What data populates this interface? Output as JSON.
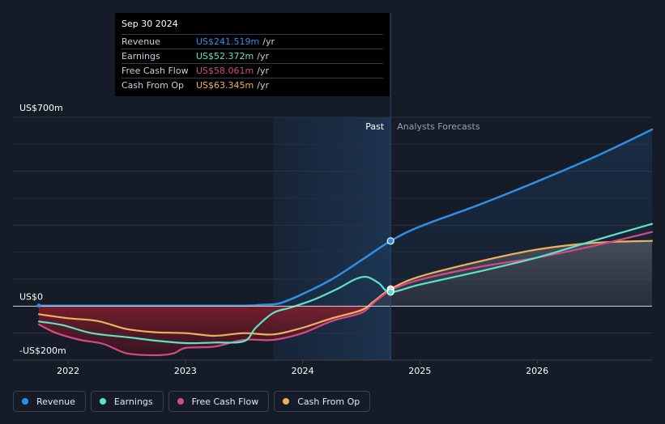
{
  "colors": {
    "background": "#151b27",
    "revenue": "#2f8fe6",
    "earnings": "#5ee3c9",
    "free_cash_flow": "#d44a86",
    "cash_from_op": "#f0b060",
    "grid": "#2b3342",
    "text": "#ffffff",
    "muted": "#9aa1ad"
  },
  "tooltip": {
    "date": "Sep 30 2024",
    "rows": [
      {
        "label": "Revenue",
        "value": "US$241.519m",
        "unit": "/yr",
        "color": "#2f8fe6"
      },
      {
        "label": "Earnings",
        "value": "US$52.372m",
        "unit": "/yr",
        "color": "#5ee3c9"
      },
      {
        "label": "Free Cash Flow",
        "value": "US$58.061m",
        "unit": "/yr",
        "color": "#d44a86"
      },
      {
        "label": "Cash From Op",
        "value": "US$63.345m",
        "unit": "/yr",
        "color": "#f0b060"
      }
    ]
  },
  "chart_data": {
    "type": "line",
    "title": "",
    "xlabel": "",
    "ylabel": "",
    "xlim": [
      2021.75,
      2026.98
    ],
    "ylim": [
      -200,
      700
    ],
    "y_tick_labels": [
      {
        "value": 700,
        "label": "US$700m"
      },
      {
        "value": 0,
        "label": "US$0"
      },
      {
        "value": -200,
        "label": "-US$200m"
      }
    ],
    "x_ticks": [
      {
        "value": 2022,
        "label": "2022"
      },
      {
        "value": 2023,
        "label": "2023"
      },
      {
        "value": 2024,
        "label": "2024"
      },
      {
        "value": 2025,
        "label": "2025"
      },
      {
        "value": 2026,
        "label": "2026"
      }
    ],
    "divider_x": 2024.75,
    "shade_start_x": 2023.75,
    "past_label": "Past",
    "forecast_label": "Analysts Forecasts",
    "highlight_x": 2024.75,
    "series": [
      {
        "name": "Revenue",
        "key": "revenue",
        "points": [
          [
            2021.75,
            2
          ],
          [
            2022.0,
            2
          ],
          [
            2022.5,
            2
          ],
          [
            2023.0,
            2
          ],
          [
            2023.5,
            2
          ],
          [
            2023.65,
            5
          ],
          [
            2023.8,
            10
          ],
          [
            2024.0,
            45
          ],
          [
            2024.25,
            100
          ],
          [
            2024.5,
            170
          ],
          [
            2024.75,
            241.5
          ],
          [
            2025.0,
            295
          ],
          [
            2025.5,
            375
          ],
          [
            2026.0,
            462
          ],
          [
            2026.5,
            555
          ],
          [
            2026.98,
            655
          ]
        ]
      },
      {
        "name": "Earnings",
        "key": "earnings",
        "points": [
          [
            2021.75,
            -57
          ],
          [
            2021.95,
            -70
          ],
          [
            2022.2,
            -100
          ],
          [
            2022.5,
            -115
          ],
          [
            2022.75,
            -128
          ],
          [
            2023.0,
            -137
          ],
          [
            2023.25,
            -135
          ],
          [
            2023.5,
            -130
          ],
          [
            2023.6,
            -80
          ],
          [
            2023.75,
            -25
          ],
          [
            2023.9,
            -5
          ],
          [
            2024.1,
            25
          ],
          [
            2024.3,
            65
          ],
          [
            2024.45,
            100
          ],
          [
            2024.55,
            108
          ],
          [
            2024.65,
            85
          ],
          [
            2024.75,
            52.4
          ],
          [
            2025.0,
            80
          ],
          [
            2025.5,
            128
          ],
          [
            2026.0,
            180
          ],
          [
            2026.5,
            245
          ],
          [
            2026.98,
            305
          ]
        ]
      },
      {
        "name": "Free Cash Flow",
        "key": "free_cash_flow",
        "points": [
          [
            2021.75,
            -68
          ],
          [
            2021.9,
            -100
          ],
          [
            2022.1,
            -125
          ],
          [
            2022.3,
            -140
          ],
          [
            2022.5,
            -175
          ],
          [
            2022.75,
            -182
          ],
          [
            2022.9,
            -175
          ],
          [
            2023.0,
            -155
          ],
          [
            2023.25,
            -150
          ],
          [
            2023.5,
            -125
          ],
          [
            2023.75,
            -125
          ],
          [
            2024.0,
            -100
          ],
          [
            2024.25,
            -55
          ],
          [
            2024.5,
            -25
          ],
          [
            2024.6,
            10
          ],
          [
            2024.75,
            58
          ],
          [
            2025.0,
            98
          ],
          [
            2025.5,
            145
          ],
          [
            2026.0,
            180
          ],
          [
            2026.5,
            225
          ],
          [
            2026.98,
            275
          ]
        ]
      },
      {
        "name": "Cash From Op",
        "key": "cash_from_op",
        "points": [
          [
            2021.75,
            -30
          ],
          [
            2022.0,
            -45
          ],
          [
            2022.25,
            -55
          ],
          [
            2022.5,
            -85
          ],
          [
            2022.75,
            -97
          ],
          [
            2023.0,
            -100
          ],
          [
            2023.25,
            -110
          ],
          [
            2023.5,
            -100
          ],
          [
            2023.75,
            -105
          ],
          [
            2024.0,
            -80
          ],
          [
            2024.25,
            -45
          ],
          [
            2024.5,
            -15
          ],
          [
            2024.6,
            15
          ],
          [
            2024.75,
            63.3
          ],
          [
            2025.0,
            110
          ],
          [
            2025.5,
            165
          ],
          [
            2026.0,
            210
          ],
          [
            2026.5,
            235
          ],
          [
            2026.98,
            242
          ]
        ]
      }
    ]
  },
  "legend": [
    {
      "label": "Revenue",
      "key": "revenue"
    },
    {
      "label": "Earnings",
      "key": "earnings"
    },
    {
      "label": "Free Cash Flow",
      "key": "free_cash_flow"
    },
    {
      "label": "Cash From Op",
      "key": "cash_from_op"
    }
  ]
}
